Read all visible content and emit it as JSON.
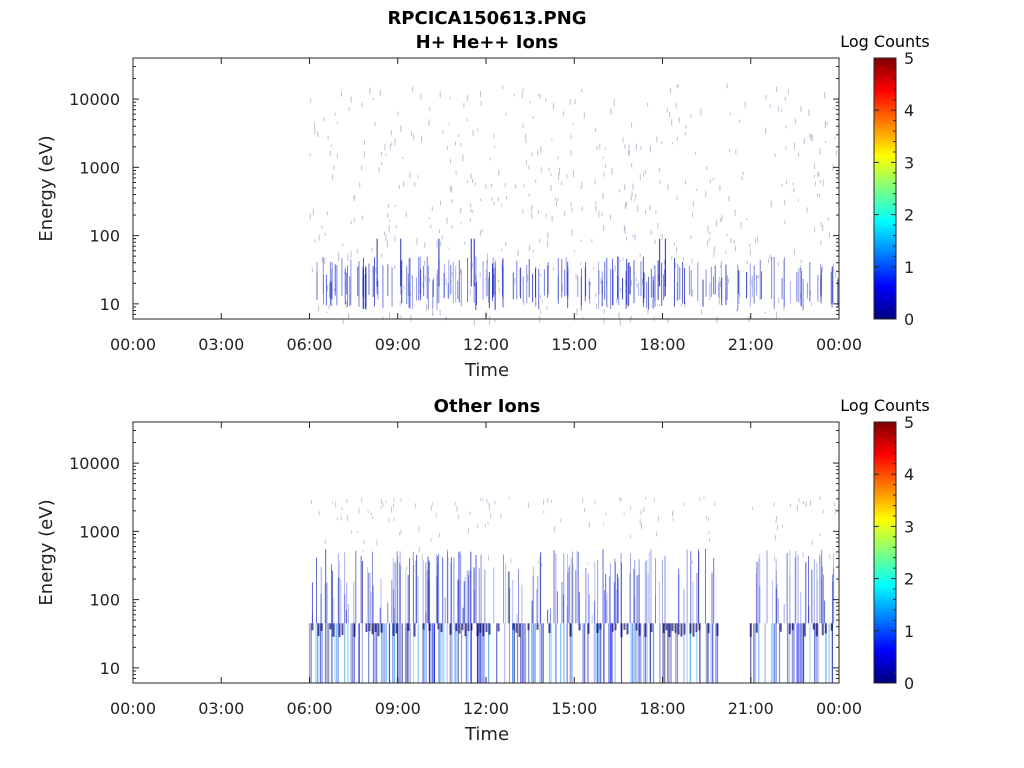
{
  "figure_title": "RPCICA150613.PNG",
  "colorbar_label": "Log Counts",
  "colorbar_ticks": [
    "0",
    "1",
    "2",
    "3",
    "4",
    "5"
  ],
  "colormap": [
    "#00007f",
    "#0000ff",
    "#007fff",
    "#00ffff",
    "#7fff7f",
    "#ffff00",
    "#ff7f00",
    "#ff0000",
    "#7f0000"
  ],
  "chart_data": [
    {
      "type": "heatmap",
      "title": "H+ He++ Ions",
      "xlabel": "Time",
      "ylabel": "Energy (eV)",
      "x_tick_labels": [
        "00:00",
        "03:00",
        "06:00",
        "09:00",
        "12:00",
        "15:00",
        "18:00",
        "21:00",
        "00:00"
      ],
      "x_tick_hours": [
        0,
        3,
        6,
        9,
        12,
        15,
        18,
        21,
        24
      ],
      "y_tick_labels": [
        "10",
        "100",
        "1000",
        "10000"
      ],
      "y_tick_values": [
        10,
        100,
        1000,
        10000
      ],
      "yscale": "log",
      "ylim": [
        6,
        40000
      ],
      "xlim_hours": [
        0,
        24
      ],
      "clim": [
        0,
        5
      ],
      "data_start_hour": 6.0,
      "data_end_hour": 24.0,
      "description_of_counts": "sparse low counts (log 0-0.5), mostly below ~40 eV"
    },
    {
      "type": "heatmap",
      "title": "Other Ions",
      "xlabel": "Time",
      "ylabel": "Energy (eV)",
      "x_tick_labels": [
        "00:00",
        "03:00",
        "06:00",
        "09:00",
        "12:00",
        "15:00",
        "18:00",
        "21:00",
        "00:00"
      ],
      "x_tick_hours": [
        0,
        3,
        6,
        9,
        12,
        15,
        18,
        21,
        24
      ],
      "y_tick_labels": [
        "10",
        "100",
        "1000",
        "10000"
      ],
      "y_tick_values": [
        10,
        100,
        1000,
        10000
      ],
      "yscale": "log",
      "ylim": [
        6,
        40000
      ],
      "xlim_hours": [
        0,
        24
      ],
      "clim": [
        0,
        5
      ],
      "data_segments_hours": [
        [
          6.0,
          19.9
        ],
        [
          21.0,
          23.9
        ]
      ],
      "band_top_eV": 45,
      "description_of_counts": "dense band below ~45 eV with counts up to ~log 2, sparse streaks up to ~1000 eV"
    }
  ]
}
